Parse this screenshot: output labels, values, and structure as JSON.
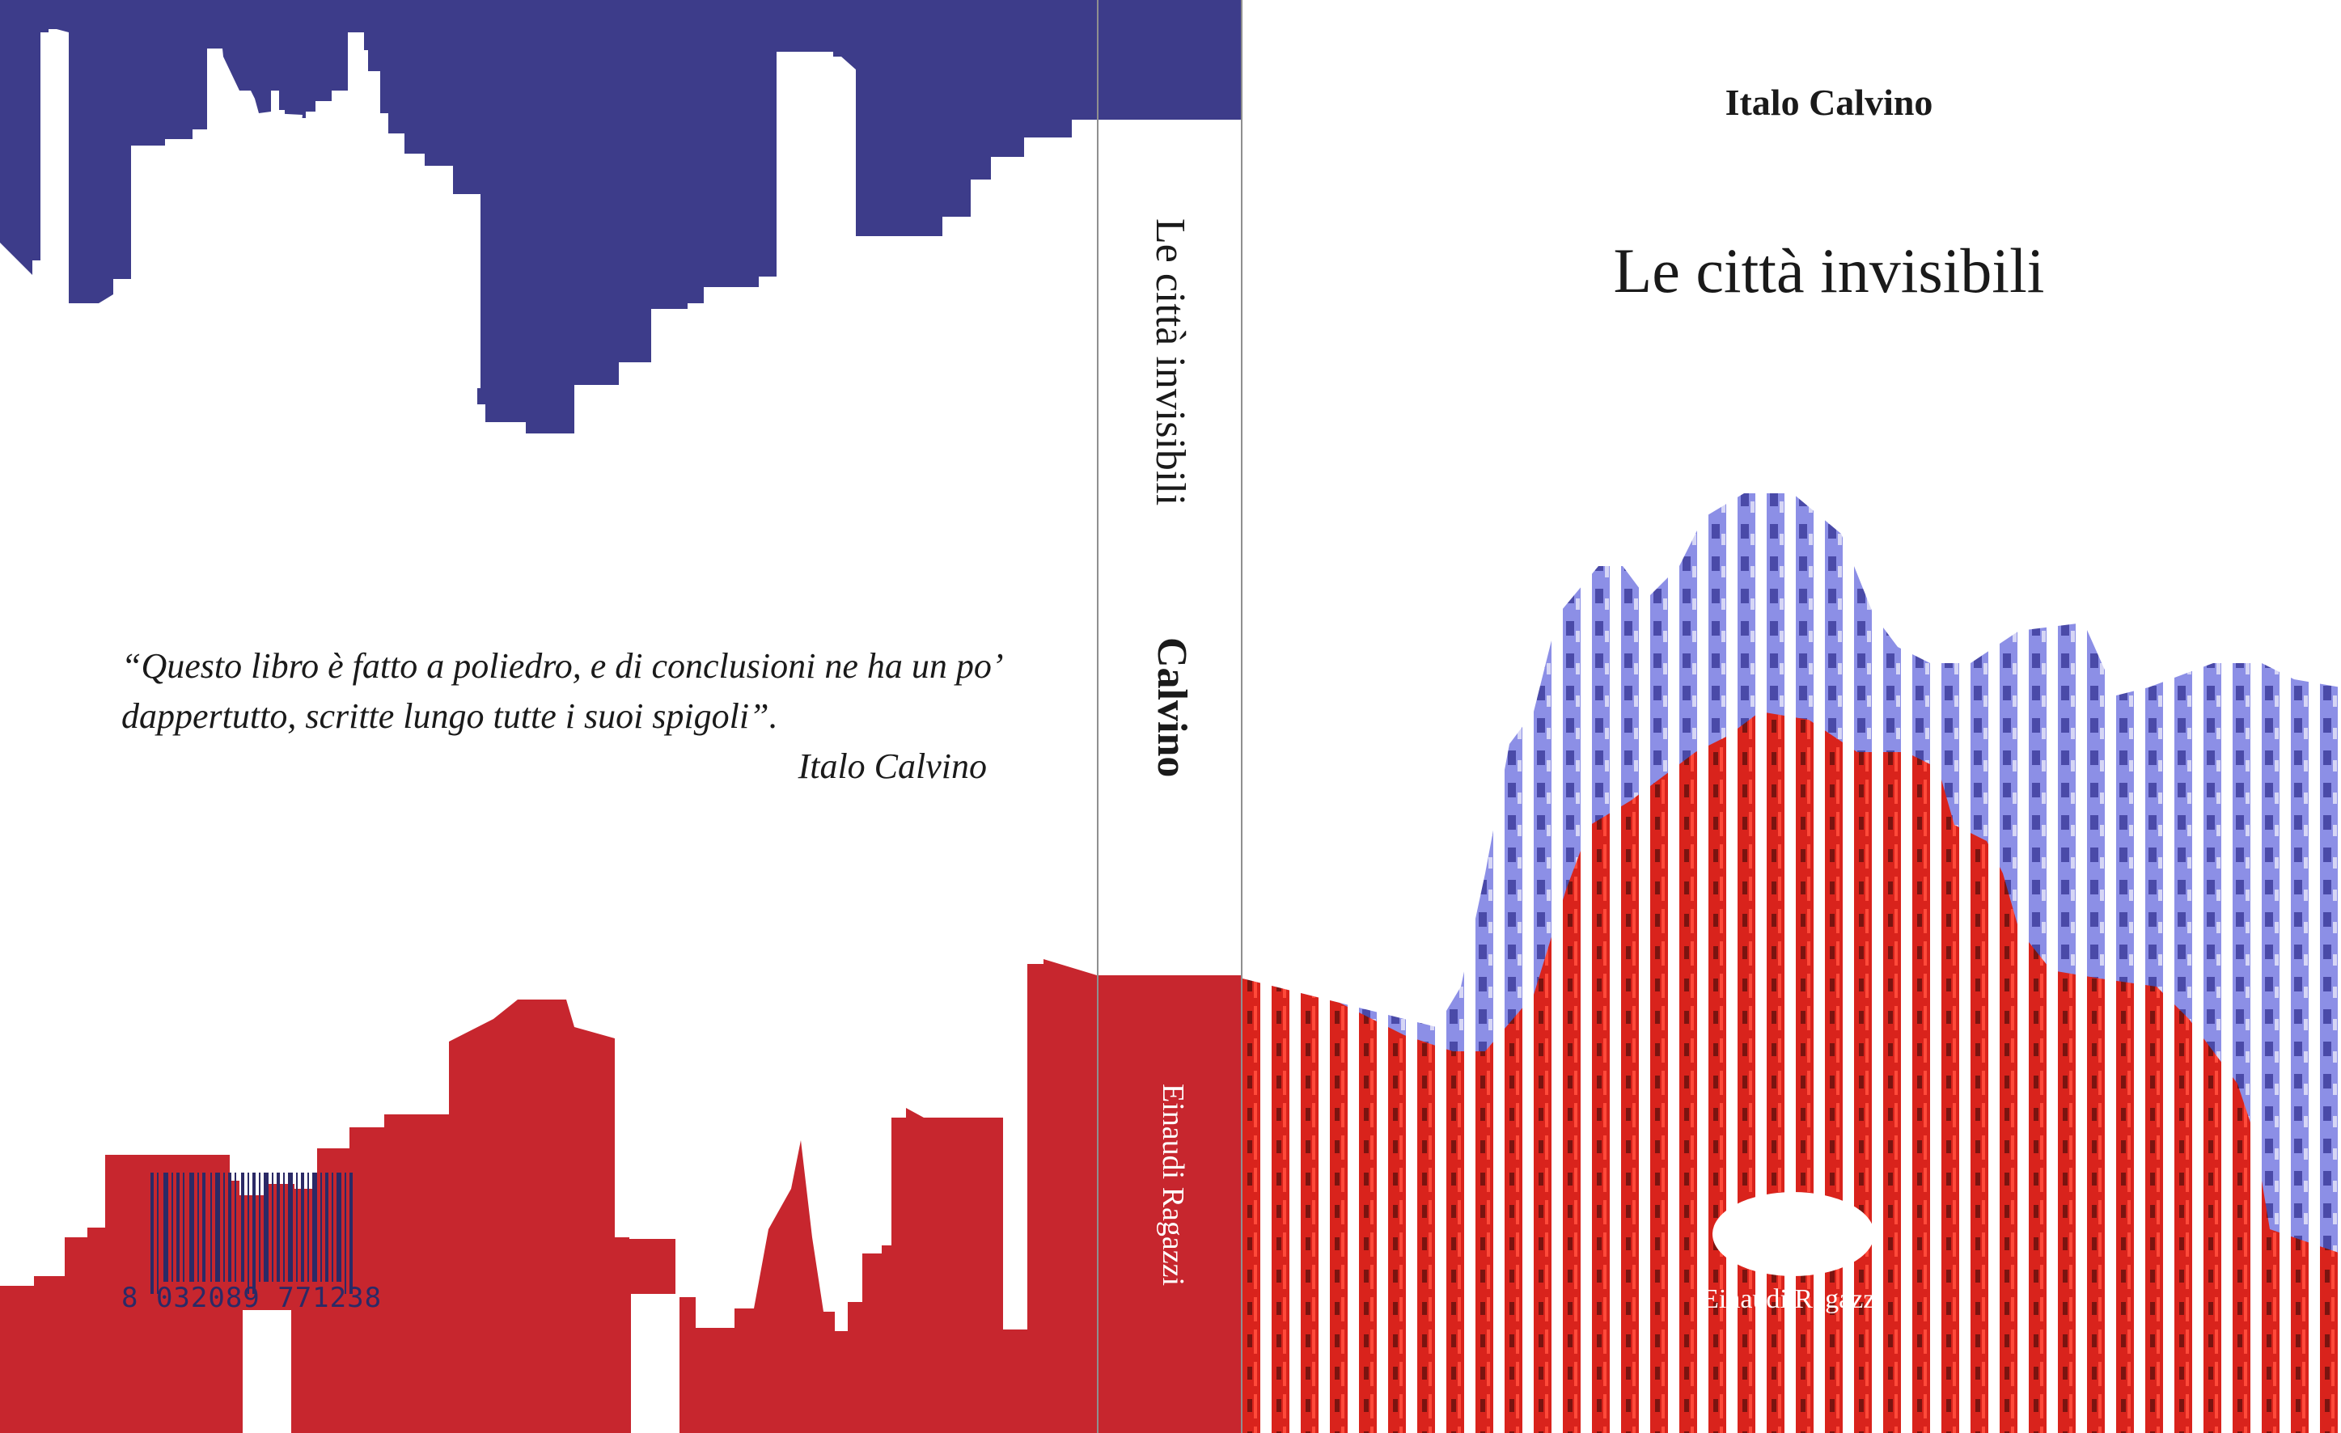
{
  "back_cover": {
    "quote_lines": [
      "“Questo libro è fatto a poliedro, e di conclusioni ne ha un po’",
      "dappertutto, scritte lungo tutte i suoi spigoli”."
    ],
    "quote_attribution": "Italo Calvino",
    "barcode_digits": "8 032089 771238"
  },
  "spine": {
    "title": "Le città invisibili",
    "author": "Calvino",
    "publisher": "Einaudi Ragazzi"
  },
  "front_cover": {
    "author": "Italo Calvino",
    "title": "Le città invisibili",
    "publisher": "Einaudi Ragazzi"
  },
  "colors": {
    "blue": "#3d3c8a",
    "red": "#c7262e",
    "building_red": "#d9231c",
    "building_glass": "#8c8fe6",
    "text": "#1a1a1a"
  },
  "icons": [
    "publisher-logo-ellipse",
    "barcode",
    "skyline-silhouette",
    "building-photo-stripes"
  ]
}
